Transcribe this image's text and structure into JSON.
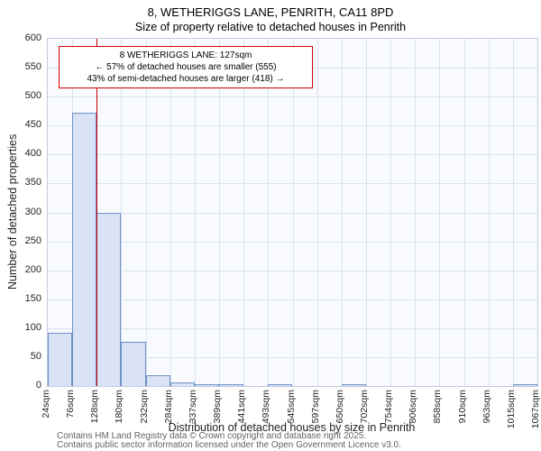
{
  "page": {
    "title": "8, WETHERIGGS LANE, PENRITH, CA11 8PD",
    "subtitle": "Size of property relative to detached houses in Penrith"
  },
  "chart_data": {
    "type": "bar",
    "title": "8, WETHERIGGS LANE, PENRITH, CA11 8PD",
    "subtitle": "Size of property relative to detached houses in Penrith",
    "xlabel": "Distribution of detached houses by size in Penrith",
    "ylabel": "Number of detached properties",
    "ylim": [
      0,
      600
    ],
    "ytick_step": 50,
    "grid": true,
    "legend": "none",
    "bin_edges_sqm": [
      24,
      76,
      128,
      180,
      232,
      284,
      337,
      389,
      441,
      493,
      545,
      597,
      650,
      702,
      754,
      806,
      858,
      910,
      963,
      1015,
      1067
    ],
    "bin_labels": [
      "24sqm",
      "76sqm",
      "128sqm",
      "180sqm",
      "232sqm",
      "284sqm",
      "337sqm",
      "389sqm",
      "441sqm",
      "493sqm",
      "545sqm",
      "597sqm",
      "650sqm",
      "702sqm",
      "754sqm",
      "806sqm",
      "858sqm",
      "910sqm",
      "963sqm",
      "1015sqm",
      "1067sqm"
    ],
    "values": [
      92,
      473,
      300,
      76,
      19,
      6,
      3,
      1,
      0,
      2,
      0,
      0,
      1,
      0,
      0,
      0,
      0,
      0,
      0,
      1
    ],
    "marker_line": {
      "value_sqm": 127,
      "color": "#cc0000"
    },
    "annotation": {
      "lines": [
        "8 WETHERIGGS LANE: 127sqm",
        "← 57% of detached houses are smaller (555)",
        "43% of semi-detached houses are larger (418) →"
      ]
    },
    "colors": {
      "bar_fill": "#d9e3f5",
      "bar_border": "#6d92c5",
      "grid": "#d9e2f2",
      "plot_bg": "#f9fafe",
      "marker": "#cc0000"
    }
  },
  "footer": {
    "line1": "Contains HM Land Registry data © Crown copyright and database right 2025.",
    "line2": "Contains public sector information licensed under the Open Government Licence v3.0."
  }
}
